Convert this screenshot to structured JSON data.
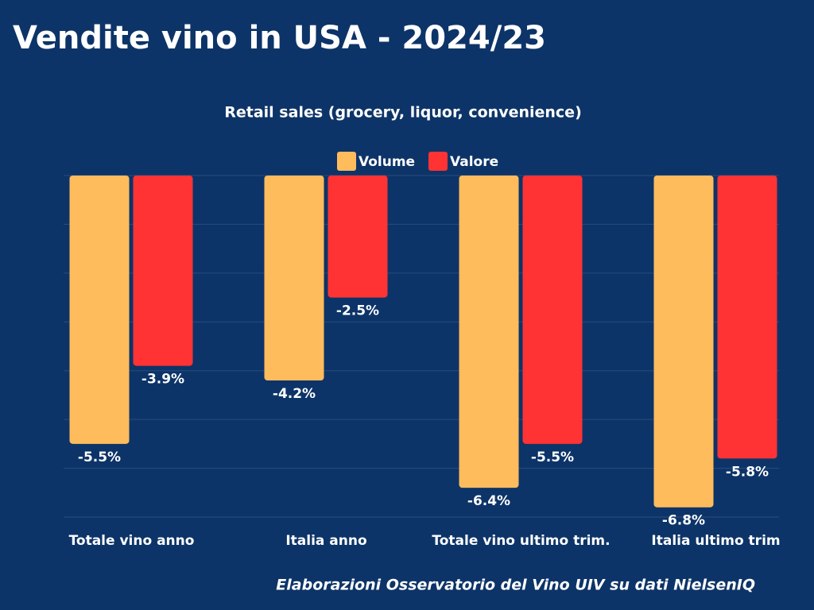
{
  "chart_data": {
    "type": "bar",
    "title": "Vendite vino in USA - 2024/23",
    "subtitle": "Retail sales (grocery, liquor, convenience)",
    "source": "Elaborazioni Osservatorio del Vino UIV su dati NielsenIQ",
    "categories": [
      "Totale vino anno",
      "Italia anno",
      "Totale vino ultimo trim.",
      "Italia ultimo trim"
    ],
    "series": [
      {
        "name": "Volume",
        "color": "#ffbc5c",
        "values": [
          -5.5,
          -4.2,
          -6.4,
          -6.8
        ],
        "value_labels": [
          "-5.5%",
          "-4.2%",
          "-6.4%",
          "-6.8%"
        ]
      },
      {
        "name": "Valore",
        "color": "#ff3333",
        "values": [
          -3.9,
          -2.5,
          -5.5,
          -5.8
        ],
        "value_labels": [
          "-3.9%",
          "-2.5%",
          "-5.5%",
          "-5.8%"
        ]
      }
    ],
    "ylim": [
      -7,
      0
    ],
    "yticks": [
      0,
      -1,
      -2,
      -3,
      -4,
      -5,
      -6,
      -7
    ],
    "grid": true,
    "legend": "top"
  }
}
